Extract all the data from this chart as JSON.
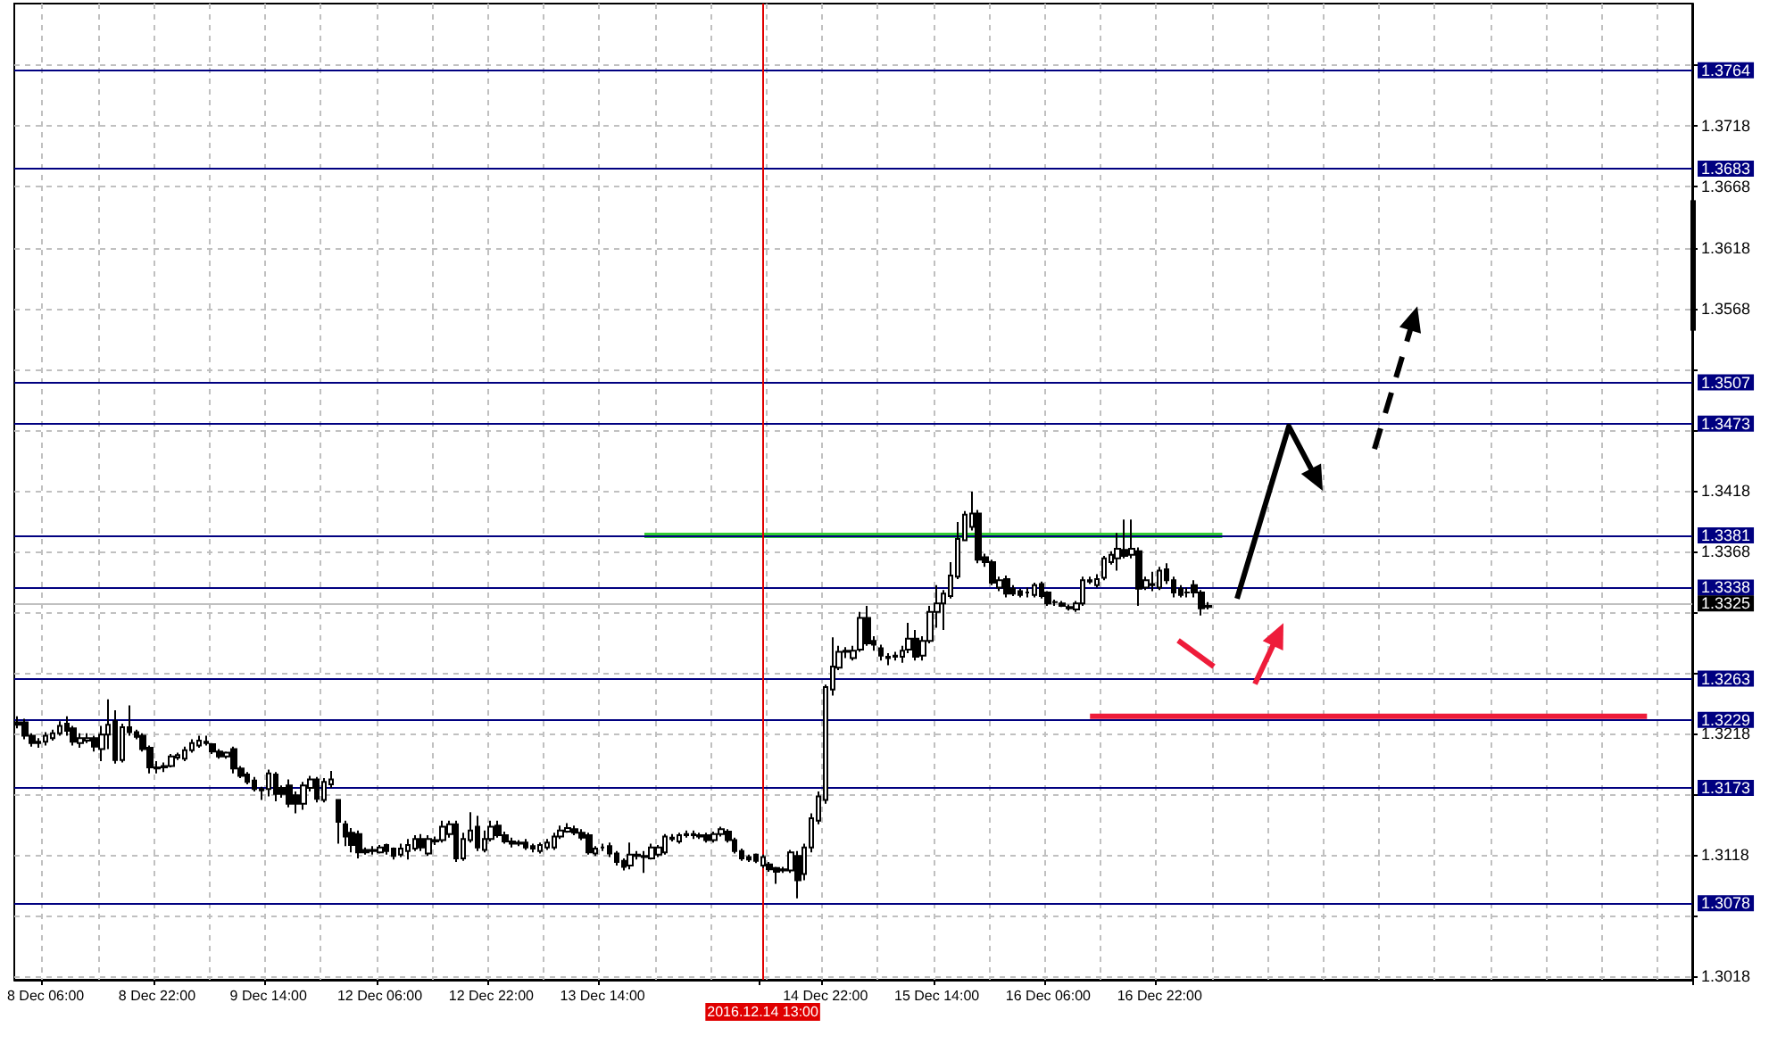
{
  "chart_data": {
    "type": "candlestick",
    "color": "#000000",
    "grid": true,
    "categories": [
      null,
      null,
      null,
      null,
      "8 Dec 06:00",
      null,
      null,
      null,
      null,
      null,
      null,
      null,
      null,
      null,
      null,
      null,
      null,
      null,
      null,
      null,
      "8 Dec 22:00",
      null,
      null,
      null,
      null,
      null,
      null,
      null,
      null,
      null,
      null,
      null,
      null,
      null,
      null,
      null,
      "9 Dec 14:00",
      null,
      null,
      null,
      null,
      null,
      null,
      null,
      null,
      null,
      null,
      null,
      null,
      null,
      null,
      null,
      "12 Dec 06:00",
      null,
      null,
      null,
      null,
      null,
      null,
      null,
      null,
      null,
      null,
      null,
      null,
      null,
      null,
      null,
      "12 Dec 22:00",
      null,
      null,
      null,
      null,
      null,
      null,
      null,
      null,
      null,
      null,
      null,
      null,
      null,
      null,
      null,
      "13 Dec 14:00",
      null,
      null,
      null,
      null,
      null,
      null,
      null,
      null,
      null,
      null,
      null,
      null,
      null,
      null,
      null,
      null,
      null,
      null,
      null,
      null,
      null,
      null,
      "2016.12.14 13:00",
      null,
      null,
      null,
      null,
      null,
      null,
      null,
      null,
      "14 Dec 22:00",
      null,
      null,
      null,
      null,
      null,
      null,
      null,
      null,
      null,
      null,
      null,
      null,
      null,
      null,
      null,
      "15 Dec 14:00",
      null,
      null,
      null,
      null,
      null,
      null,
      null,
      null,
      null,
      null,
      null,
      null,
      null,
      null,
      null,
      "16 Dec 06:00",
      null,
      null,
      null,
      null,
      null,
      null,
      null,
      null,
      null,
      null,
      null,
      null,
      null,
      null,
      null,
      "16 Dec 22:00",
      null,
      null,
      null,
      null,
      null,
      null,
      null,
      null,
      null,
      null,
      null,
      null,
      null,
      null,
      null,
      null,
      null,
      null,
      null,
      null,
      null,
      null,
      null,
      null,
      null,
      null,
      null,
      null,
      null,
      null,
      null,
      null,
      null,
      null,
      null,
      null,
      null,
      null,
      null,
      null,
      null,
      null,
      null,
      null,
      null,
      null,
      null,
      null,
      null,
      null,
      null,
      null,
      null,
      null,
      null,
      null,
      null,
      null,
      null,
      null,
      null,
      null,
      null,
      null,
      null,
      null,
      null,
      null,
      null,
      null,
      null,
      null,
      null,
      null,
      null,
      null
    ],
    "ohlc": [
      [
        1.3227,
        1.3232,
        1.3222,
        1.3225
      ],
      [
        1.3227,
        1.323,
        1.3213,
        1.3216
      ],
      [
        1.3216,
        1.3218,
        1.3207,
        1.321
      ],
      [
        1.321,
        1.3214,
        1.3206,
        1.3211
      ],
      [
        1.3211,
        1.3219,
        1.3208,
        1.3216
      ],
      [
        1.3214,
        1.3221,
        1.3212,
        1.3218
      ],
      [
        1.3218,
        1.3228,
        1.3216,
        1.3224
      ],
      [
        1.3226,
        1.3232,
        1.3216,
        1.322
      ],
      [
        1.3222,
        1.3224,
        1.3208,
        1.3211
      ],
      [
        1.321,
        1.3218,
        1.3206,
        1.3214
      ],
      [
        1.3212,
        1.3218,
        1.321,
        1.3214
      ],
      [
        1.3214,
        1.3216,
        1.3203,
        1.3207
      ],
      [
        1.3205,
        1.3224,
        1.3195,
        1.3217
      ],
      [
        1.3217,
        1.3246,
        1.3205,
        1.3225
      ],
      [
        1.3228,
        1.3237,
        1.3193,
        1.3196
      ],
      [
        1.3196,
        1.3226,
        1.3194,
        1.3223
      ],
      [
        1.3223,
        1.3241,
        1.3216,
        1.3219
      ],
      [
        1.3219,
        1.3221,
        1.3213,
        1.3215
      ],
      [
        1.3216,
        1.3218,
        1.3203,
        1.3205
      ],
      [
        1.3206,
        1.3208,
        1.3185,
        1.319
      ],
      [
        1.319,
        1.3195,
        1.3185,
        1.3189
      ],
      [
        1.319,
        1.3194,
        1.3186,
        1.3191
      ],
      [
        1.3191,
        1.3201,
        1.319,
        1.3199
      ],
      [
        1.3198,
        1.3202,
        1.3196,
        1.32
      ],
      [
        1.3197,
        1.3207,
        1.3195,
        1.3204
      ],
      [
        1.3204,
        1.3213,
        1.3202,
        1.321
      ],
      [
        1.3208,
        1.3216,
        1.3206,
        1.3212
      ],
      [
        1.3211,
        1.3216,
        1.3208,
        1.321
      ],
      [
        1.3209,
        1.321,
        1.3201,
        1.3203
      ],
      [
        1.3203,
        1.3205,
        1.3197,
        1.3199
      ],
      [
        1.3199,
        1.3203,
        1.3197,
        1.3202
      ],
      [
        1.3205,
        1.3207,
        1.3185,
        1.3189
      ],
      [
        1.3189,
        1.3191,
        1.3181,
        1.3183
      ],
      [
        1.3184,
        1.3186,
        1.3176,
        1.3178
      ],
      [
        1.3179,
        1.3182,
        1.317,
        1.3172
      ],
      [
        1.3172,
        1.3174,
        1.3163,
        1.3171
      ],
      [
        1.3172,
        1.3188,
        1.3166,
        1.3185
      ],
      [
        1.3184,
        1.3186,
        1.3162,
        1.3168
      ],
      [
        1.3173,
        1.3175,
        1.3165,
        1.3168
      ],
      [
        1.3175,
        1.318,
        1.3157,
        1.316
      ],
      [
        1.3167,
        1.317,
        1.3152,
        1.316
      ],
      [
        1.316,
        1.3178,
        1.3155,
        1.3175
      ],
      [
        1.3173,
        1.3183,
        1.317,
        1.318
      ],
      [
        1.318,
        1.3182,
        1.3161,
        1.3164
      ],
      [
        1.3163,
        1.3181,
        1.3161,
        1.3178
      ],
      [
        1.3176,
        1.3187,
        1.3173,
        1.318
      ],
      [
        1.3163,
        1.3163,
        1.3127,
        1.3145
      ],
      [
        1.3143,
        1.3146,
        1.3125,
        1.3133
      ],
      [
        1.3136,
        1.314,
        1.312,
        1.3126
      ],
      [
        1.3135,
        1.3138,
        1.3115,
        1.312
      ],
      [
        1.3122,
        1.3124,
        1.3118,
        1.312
      ],
      [
        1.3121,
        1.3125,
        1.3118,
        1.3122
      ],
      [
        1.312,
        1.3126,
        1.3119,
        1.3124
      ],
      [
        1.3126,
        1.3127,
        1.3118,
        1.3121
      ],
      [
        1.3123,
        1.3124,
        1.3114,
        1.3117
      ],
      [
        1.3118,
        1.3127,
        1.3116,
        1.3123
      ],
      [
        1.3121,
        1.3131,
        1.3114,
        1.3126
      ],
      [
        1.3123,
        1.3134,
        1.3121,
        1.3131
      ],
      [
        1.3131,
        1.3135,
        1.3121,
        1.3124
      ],
      [
        1.3119,
        1.3134,
        1.3117,
        1.3131
      ],
      [
        1.313,
        1.3133,
        1.3126,
        1.3129
      ],
      [
        1.313,
        1.3146,
        1.3128,
        1.3141
      ],
      [
        1.3135,
        1.3146,
        1.3132,
        1.3143
      ],
      [
        1.3143,
        1.3146,
        1.3112,
        1.3115
      ],
      [
        1.3115,
        1.3136,
        1.3113,
        1.3131
      ],
      [
        1.313,
        1.3153,
        1.3128,
        1.3138
      ],
      [
        1.3141,
        1.315,
        1.3121,
        1.3124
      ],
      [
        1.3122,
        1.3138,
        1.312,
        1.3131
      ],
      [
        1.3131,
        1.3146,
        1.3129,
        1.3141
      ],
      [
        1.3142,
        1.3146,
        1.3132,
        1.3134
      ],
      [
        1.3134,
        1.3137,
        1.3127,
        1.3129
      ],
      [
        1.3129,
        1.3132,
        1.3124,
        1.3127
      ],
      [
        1.3128,
        1.313,
        1.3125,
        1.3127
      ],
      [
        1.3128,
        1.3131,
        1.3122,
        1.3124
      ],
      [
        1.3125,
        1.3127,
        1.312,
        1.3123
      ],
      [
        1.3121,
        1.3128,
        1.3119,
        1.3126
      ],
      [
        1.3124,
        1.3131,
        1.3122,
        1.3128
      ],
      [
        1.3124,
        1.3136,
        1.3122,
        1.3133
      ],
      [
        1.3133,
        1.3142,
        1.3131,
        1.3138
      ],
      [
        1.3137,
        1.3144,
        1.3136,
        1.314
      ],
      [
        1.3139,
        1.3142,
        1.3134,
        1.3136
      ],
      [
        1.3136,
        1.3139,
        1.313,
        1.3132
      ],
      [
        1.3134,
        1.3136,
        1.3118,
        1.312
      ],
      [
        1.3119,
        1.3125,
        1.3117,
        1.3123
      ],
      [
        1.3124,
        1.3127,
        1.3121,
        1.3124
      ],
      [
        1.3125,
        1.3128,
        1.3116,
        1.3119
      ],
      [
        1.3119,
        1.3121,
        1.3109,
        1.3112
      ],
      [
        1.3113,
        1.3115,
        1.3105,
        1.3108
      ],
      [
        1.3109,
        1.3128,
        1.3106,
        1.3118
      ],
      [
        1.3117,
        1.3121,
        1.3114,
        1.3118
      ],
      [
        1.3117,
        1.3121,
        1.3103,
        1.3116
      ],
      [
        1.3115,
        1.3127,
        1.3114,
        1.3124
      ],
      [
        1.3118,
        1.3126,
        1.3116,
        1.3124
      ],
      [
        1.312,
        1.3135,
        1.3118,
        1.3133
      ],
      [
        1.3131,
        1.3135,
        1.3129,
        1.3132
      ],
      [
        1.3129,
        1.3136,
        1.3127,
        1.3134
      ],
      [
        1.3134,
        1.3138,
        1.3132,
        1.3135
      ],
      [
        1.3135,
        1.3138,
        1.3131,
        1.3134
      ],
      [
        1.3134,
        1.3136,
        1.3131,
        1.3133
      ],
      [
        1.3134,
        1.3136,
        1.3128,
        1.313
      ],
      [
        1.313,
        1.3137,
        1.3128,
        1.3135
      ],
      [
        1.3135,
        1.3141,
        1.3133,
        1.3139
      ],
      [
        1.3137,
        1.3139,
        1.3128,
        1.313
      ],
      [
        1.313,
        1.3132,
        1.3119,
        1.3121
      ],
      [
        1.3121,
        1.3123,
        1.3113,
        1.3115
      ],
      [
        1.3116,
        1.3118,
        1.3112,
        1.3114
      ],
      [
        1.3118,
        1.3119,
        1.3111,
        1.3113
      ],
      [
        1.3109,
        1.3118,
        1.3107,
        1.3116
      ],
      [
        1.311,
        1.3112,
        1.3104,
        1.3106
      ],
      [
        1.3107,
        1.3108,
        1.3094,
        1.3104
      ],
      [
        1.3106,
        1.3108,
        1.3103,
        1.3105
      ],
      [
        1.3105,
        1.3122,
        1.3103,
        1.312
      ],
      [
        1.3117,
        1.3121,
        1.3082,
        1.3097
      ],
      [
        1.3102,
        1.3127,
        1.3097,
        1.3124
      ],
      [
        1.3124,
        1.3152,
        1.312,
        1.3148
      ],
      [
        1.3146,
        1.317,
        1.3143,
        1.3166
      ],
      [
        1.3163,
        1.3258,
        1.316,
        1.3256
      ],
      [
        1.3254,
        1.3297,
        1.3249,
        1.3273
      ],
      [
        1.3272,
        1.329,
        1.327,
        1.3285
      ],
      [
        1.3285,
        1.3289,
        1.328,
        1.3286
      ],
      [
        1.328,
        1.329,
        1.3278,
        1.3286
      ],
      [
        1.3287,
        1.3318,
        1.3285,
        1.3313
      ],
      [
        1.3313,
        1.3323,
        1.329,
        1.3292
      ],
      [
        1.3294,
        1.3298,
        1.3286,
        1.3291
      ],
      [
        1.3288,
        1.3291,
        1.3278,
        1.3282
      ],
      [
        1.3281,
        1.3284,
        1.3274,
        1.328
      ],
      [
        1.3282,
        1.3285,
        1.3278,
        1.3281
      ],
      [
        1.3281,
        1.329,
        1.3276,
        1.3286
      ],
      [
        1.3287,
        1.3309,
        1.3284,
        1.3296
      ],
      [
        1.3296,
        1.3303,
        1.3278,
        1.3281
      ],
      [
        1.3282,
        1.3298,
        1.3278,
        1.3294
      ],
      [
        1.3294,
        1.3323,
        1.3292,
        1.3318
      ],
      [
        1.3318,
        1.334,
        1.3305,
        1.3325
      ],
      [
        1.3325,
        1.3336,
        1.3303,
        1.3333
      ],
      [
        1.3331,
        1.3359,
        1.3329,
        1.3348
      ],
      [
        1.3347,
        1.3392,
        1.3345,
        1.3378
      ],
      [
        1.3377,
        1.3401,
        1.3377,
        1.3398
      ],
      [
        1.3388,
        1.3417,
        1.3385,
        1.3399
      ],
      [
        1.3399,
        1.3402,
        1.3358,
        1.3361
      ],
      [
        1.3363,
        1.3366,
        1.3355,
        1.3359
      ],
      [
        1.3359,
        1.3361,
        1.334,
        1.3342
      ],
      [
        1.3338,
        1.3347,
        1.3335,
        1.3344
      ],
      [
        1.3345,
        1.3348,
        1.333,
        1.3333
      ],
      [
        1.3337,
        1.334,
        1.3331,
        1.3333
      ],
      [
        1.3335,
        1.3337,
        1.333,
        1.3332
      ],
      [
        1.3334,
        1.3338,
        1.333,
        1.3334
      ],
      [
        1.3332,
        1.3342,
        1.333,
        1.334
      ],
      [
        1.3341,
        1.3343,
        1.3329,
        1.3331
      ],
      [
        1.3334,
        1.3335,
        1.3323,
        1.3325
      ],
      [
        1.3326,
        1.3328,
        1.3323,
        1.3326
      ],
      [
        1.3325,
        1.3327,
        1.3322,
        1.3323
      ],
      [
        1.3322,
        1.3324,
        1.3319,
        1.3321
      ],
      [
        1.332,
        1.3327,
        1.3318,
        1.3325
      ],
      [
        1.3325,
        1.3347,
        1.3323,
        1.3344
      ],
      [
        1.3343,
        1.3347,
        1.3341,
        1.3344
      ],
      [
        1.334,
        1.3349,
        1.3338,
        1.3345
      ],
      [
        1.3346,
        1.3364,
        1.3344,
        1.3362
      ],
      [
        1.3359,
        1.3368,
        1.3357,
        1.3365
      ],
      [
        1.3362,
        1.3383,
        1.3352,
        1.337
      ],
      [
        1.3369,
        1.3394,
        1.3362,
        1.3364
      ],
      [
        1.3365,
        1.3394,
        1.3362,
        1.337
      ],
      [
        1.3368,
        1.3371,
        1.3323,
        1.3337
      ],
      [
        1.3338,
        1.3347,
        1.3336,
        1.3344
      ],
      [
        1.3341,
        1.3351,
        1.3335,
        1.334
      ],
      [
        1.3338,
        1.3355,
        1.3336,
        1.3352
      ],
      [
        1.3353,
        1.3358,
        1.3341,
        1.3344
      ],
      [
        1.3344,
        1.3347,
        1.333,
        1.3334
      ],
      [
        1.3337,
        1.334,
        1.333,
        1.3332
      ],
      [
        1.3334,
        1.3338,
        1.333,
        1.3334
      ],
      [
        1.334,
        1.3344,
        1.333,
        1.3334
      ],
      [
        1.3334,
        1.3336,
        1.3315,
        1.3321
      ],
      [
        1.3322,
        1.3326,
        1.332,
        1.3323
      ],
      null,
      null,
      null,
      null,
      null,
      null,
      null,
      null,
      null,
      null,
      null,
      null,
      null,
      null,
      null,
      null,
      null,
      null,
      null,
      null,
      null,
      null,
      null,
      null,
      null,
      null,
      null,
      null,
      null,
      null,
      null,
      null,
      null,
      null,
      null,
      null,
      null,
      null,
      null,
      null,
      null,
      null,
      null,
      null,
      null,
      null,
      null,
      null,
      null,
      null,
      null,
      null,
      null,
      null,
      null,
      null,
      null,
      null,
      null,
      null,
      null,
      null,
      null,
      null,
      null,
      null,
      null,
      null,
      null
    ],
    "series": [
      {
        "type": "line",
        "color": "#33cc33",
        "values": [
          null,
          null,
          null,
          null,
          null,
          null,
          null,
          null,
          null,
          null,
          null,
          null,
          null,
          null,
          null,
          null,
          null,
          null,
          null,
          null,
          null,
          null,
          null,
          null,
          null,
          null,
          null,
          null,
          null,
          null,
          null,
          null,
          null,
          null,
          null,
          null,
          null,
          null,
          null,
          null,
          null,
          null,
          null,
          null,
          null,
          null,
          null,
          null,
          null,
          null,
          null,
          null,
          null,
          null,
          null,
          null,
          null,
          null,
          null,
          null,
          null,
          null,
          null,
          null,
          null,
          null,
          null,
          null,
          null,
          null,
          null,
          null,
          null,
          null,
          null,
          null,
          null,
          null,
          null,
          null,
          null,
          null,
          null,
          null,
          null,
          null,
          null,
          null,
          null,
          null,
          1.3381,
          null,
          null,
          null,
          null,
          null,
          null,
          null,
          null,
          null,
          null,
          null,
          null,
          null,
          null,
          null,
          null,
          null,
          null,
          null,
          null,
          null,
          null,
          null,
          null,
          null,
          null,
          null,
          null,
          null,
          null,
          null,
          null,
          null,
          null,
          null,
          null,
          null,
          null,
          null,
          null,
          null,
          null,
          null,
          null,
          null,
          null,
          null,
          null,
          null,
          null,
          null,
          null,
          null,
          null,
          null,
          null,
          null,
          null,
          null,
          null,
          null,
          null,
          null,
          null,
          null,
          null,
          null,
          null,
          null,
          null,
          null,
          null,
          null,
          null,
          null,
          null,
          null,
          null,
          null,
          null,
          null,
          null,
          1.3381,
          null,
          null,
          null,
          null,
          null,
          null,
          null,
          null,
          null,
          null,
          null,
          null,
          null,
          null,
          null,
          null,
          null,
          null,
          null,
          null,
          null,
          null,
          null,
          null,
          null,
          null,
          null,
          null,
          null,
          null,
          null,
          null,
          null,
          null,
          null,
          null,
          null,
          null,
          null,
          null,
          null,
          null,
          null,
          null,
          null,
          null,
          null,
          null,
          null,
          null,
          null,
          null,
          null,
          null,
          null,
          null,
          null,
          null,
          null,
          null,
          null,
          null,
          null,
          null,
          null,
          null,
          null
        ]
      },
      {
        "type": "line",
        "color": "#ee1c3a",
        "values": [
          null,
          null,
          null,
          null,
          null,
          null,
          null,
          null,
          null,
          null,
          null,
          null,
          null,
          null,
          null,
          null,
          null,
          null,
          null,
          null,
          null,
          null,
          null,
          null,
          null,
          null,
          null,
          null,
          null,
          null,
          null,
          null,
          null,
          null,
          null,
          null,
          null,
          null,
          null,
          null,
          null,
          null,
          null,
          null,
          null,
          null,
          null,
          null,
          null,
          null,
          null,
          null,
          null,
          null,
          null,
          null,
          null,
          null,
          null,
          null,
          null,
          null,
          null,
          null,
          null,
          null,
          null,
          null,
          null,
          null,
          null,
          null,
          null,
          null,
          null,
          null,
          null,
          null,
          null,
          null,
          null,
          null,
          null,
          null,
          null,
          null,
          null,
          null,
          null,
          null,
          null,
          null,
          null,
          null,
          null,
          null,
          null,
          null,
          null,
          null,
          null,
          null,
          null,
          null,
          null,
          null,
          null,
          null,
          null,
          null,
          null,
          null,
          null,
          null,
          null,
          null,
          null,
          null,
          null,
          null,
          null,
          null,
          null,
          null,
          null,
          null,
          null,
          null,
          null,
          null,
          null,
          null,
          null,
          null,
          null,
          null,
          null,
          null,
          null,
          null,
          null,
          null,
          null,
          null,
          null,
          null,
          null,
          null,
          null,
          null,
          null,
          null,
          null,
          null,
          1.3232,
          null,
          null,
          null,
          null,
          null,
          null,
          null,
          null,
          null,
          null,
          null,
          null,
          null,
          null,
          null,
          null,
          null,
          null,
          null,
          null,
          null,
          null,
          null,
          null,
          null,
          null,
          null,
          null,
          null,
          null,
          null,
          null,
          null,
          null,
          null,
          null,
          null,
          null,
          null,
          null,
          null,
          null,
          null,
          null,
          null,
          null,
          null,
          null,
          null,
          null,
          null,
          null,
          null,
          null,
          null,
          null,
          null,
          null,
          null,
          null,
          null,
          null,
          null,
          null,
          null,
          null,
          null,
          null,
          null,
          null,
          null,
          null,
          null,
          null,
          null,
          null,
          null,
          null,
          null,
          1.3232,
          null,
          null,
          null,
          null,
          null,
          null
        ]
      }
    ],
    "ylim": [
      1.3015,
      1.3819
    ],
    "yticks": [
      1.3018,
      {
        "value": 1.3068,
        "label": null
      },
      1.3118,
      {
        "value": 1.3168,
        "label": null
      },
      1.3218,
      {
        "value": 1.3268,
        "label": null
      },
      {
        "value": 1.3318,
        "label": null
      },
      1.3368,
      1.3418,
      {
        "value": 1.3468,
        "label": null
      },
      {
        "value": 1.3518,
        "label": null
      },
      1.3568,
      1.3618,
      1.3668,
      1.3718,
      {
        "value": 1.3768,
        "label": null
      }
    ],
    "ref_lines": [
      {
        "axis": "y",
        "value": 1.3764,
        "label": "1.3764",
        "color": "#000080"
      },
      {
        "axis": "y",
        "value": 1.3683,
        "label": "1.3683",
        "color": "#000080"
      },
      {
        "axis": "y",
        "value": 1.3507,
        "label": "1.3507",
        "color": "#000080"
      },
      {
        "axis": "y",
        "value": 1.3473,
        "label": "1.3473",
        "color": "#000080"
      },
      {
        "axis": "y",
        "value": 1.3381,
        "label": "1.3381",
        "color": "#000080"
      },
      {
        "axis": "y",
        "value": 1.3338,
        "label": "1.3338",
        "color": "#000080"
      },
      {
        "axis": "y",
        "value": 1.3325,
        "label": "1.3325",
        "color": "#c0c0c0"
      },
      {
        "axis": "y",
        "value": 1.3263,
        "label": "1.3263",
        "color": "#000080"
      },
      {
        "axis": "y",
        "value": 1.3229,
        "label": "1.3229",
        "color": "#000080"
      },
      {
        "axis": "y",
        "value": 1.3173,
        "label": "1.3173",
        "color": "#000080"
      },
      {
        "axis": "y",
        "value": 1.3078,
        "label": "1.3078",
        "color": "#000080"
      },
      {
        "axis": "x",
        "value": "2016.12.14 13:00",
        "color": "#e00000"
      }
    ]
  }
}
